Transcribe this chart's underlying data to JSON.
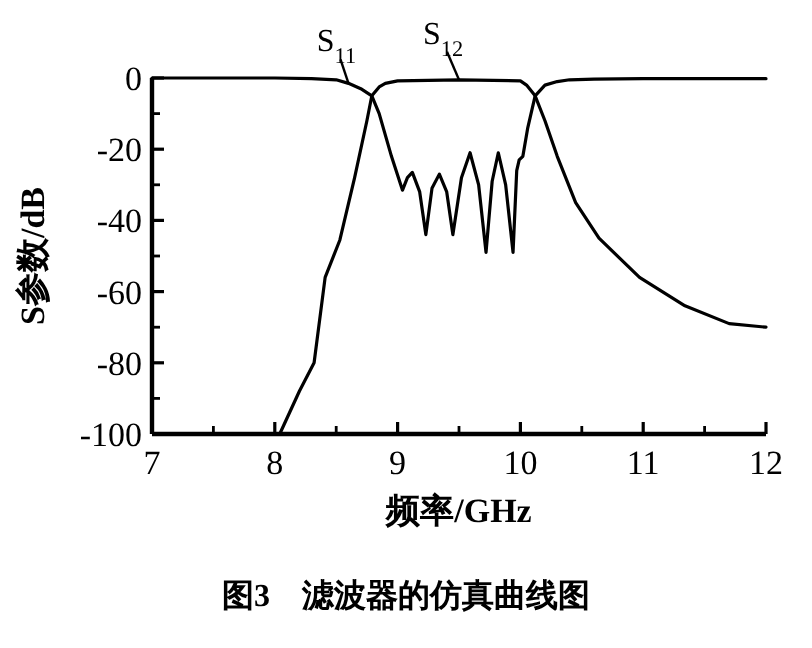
{
  "chart_data": {
    "type": "line",
    "xlabel": "频率/GHz",
    "ylabel": "S参数/dB",
    "annotations": [
      "图3　滤波器的仿真曲线图"
    ],
    "xlim": [
      7,
      12
    ],
    "ylim": [
      -100,
      0
    ],
    "xticks": [
      7,
      8,
      9,
      10,
      11,
      12
    ],
    "yticks": [
      -100,
      -80,
      -60,
      -40,
      -20,
      0
    ],
    "grid": false,
    "marker": "none",
    "line_style": "solid",
    "series": [
      {
        "name": "S$_{11}$",
        "color": "#000000",
        "x": [
          7,
          7.5,
          8,
          8.3,
          8.5,
          8.6,
          8.7,
          8.79,
          8.85,
          8.95,
          9.04,
          9.08,
          9.12,
          9.18,
          9.23,
          9.28,
          9.34,
          9.4,
          9.45,
          9.52,
          9.59,
          9.66,
          9.72,
          9.77,
          9.82,
          9.88,
          9.94,
          9.97,
          9.99,
          10.02,
          10.06,
          10.12,
          10.2,
          10.3,
          10.4,
          10.6,
          11,
          11.5,
          12
        ],
        "values": [
          0,
          0,
          0,
          -0.2,
          -0.5,
          -1.5,
          -3,
          -5,
          -10,
          -22,
          -31.5,
          -28,
          -26.5,
          -32,
          -44,
          -31,
          -27,
          -32,
          -44,
          -28,
          -21,
          -30,
          -49,
          -29,
          -21,
          -30,
          -49,
          -26,
          -23,
          -22,
          -14,
          -5,
          -2,
          -1,
          -0.5,
          -0.3,
          -0.2,
          -0.2,
          -0.2
        ]
      },
      {
        "name": "S$_{12}$",
        "color": "#000000",
        "x": [
          8.04,
          8.2,
          8.32,
          8.41,
          8.53,
          8.65,
          8.75,
          8.79,
          8.85,
          8.9,
          9,
          9.5,
          10,
          10.05,
          10.12,
          10.2,
          10.3,
          10.45,
          10.64,
          10.97,
          11.34,
          11.7,
          12
        ],
        "values": [
          -100,
          -88,
          -80,
          -56,
          -45.5,
          -28,
          -12,
          -5,
          -2.5,
          -1.5,
          -0.8,
          -0.5,
          -0.8,
          -2,
          -5,
          -12,
          -22,
          -35,
          -45,
          -56,
          -64,
          -69,
          -70
        ]
      }
    ]
  }
}
